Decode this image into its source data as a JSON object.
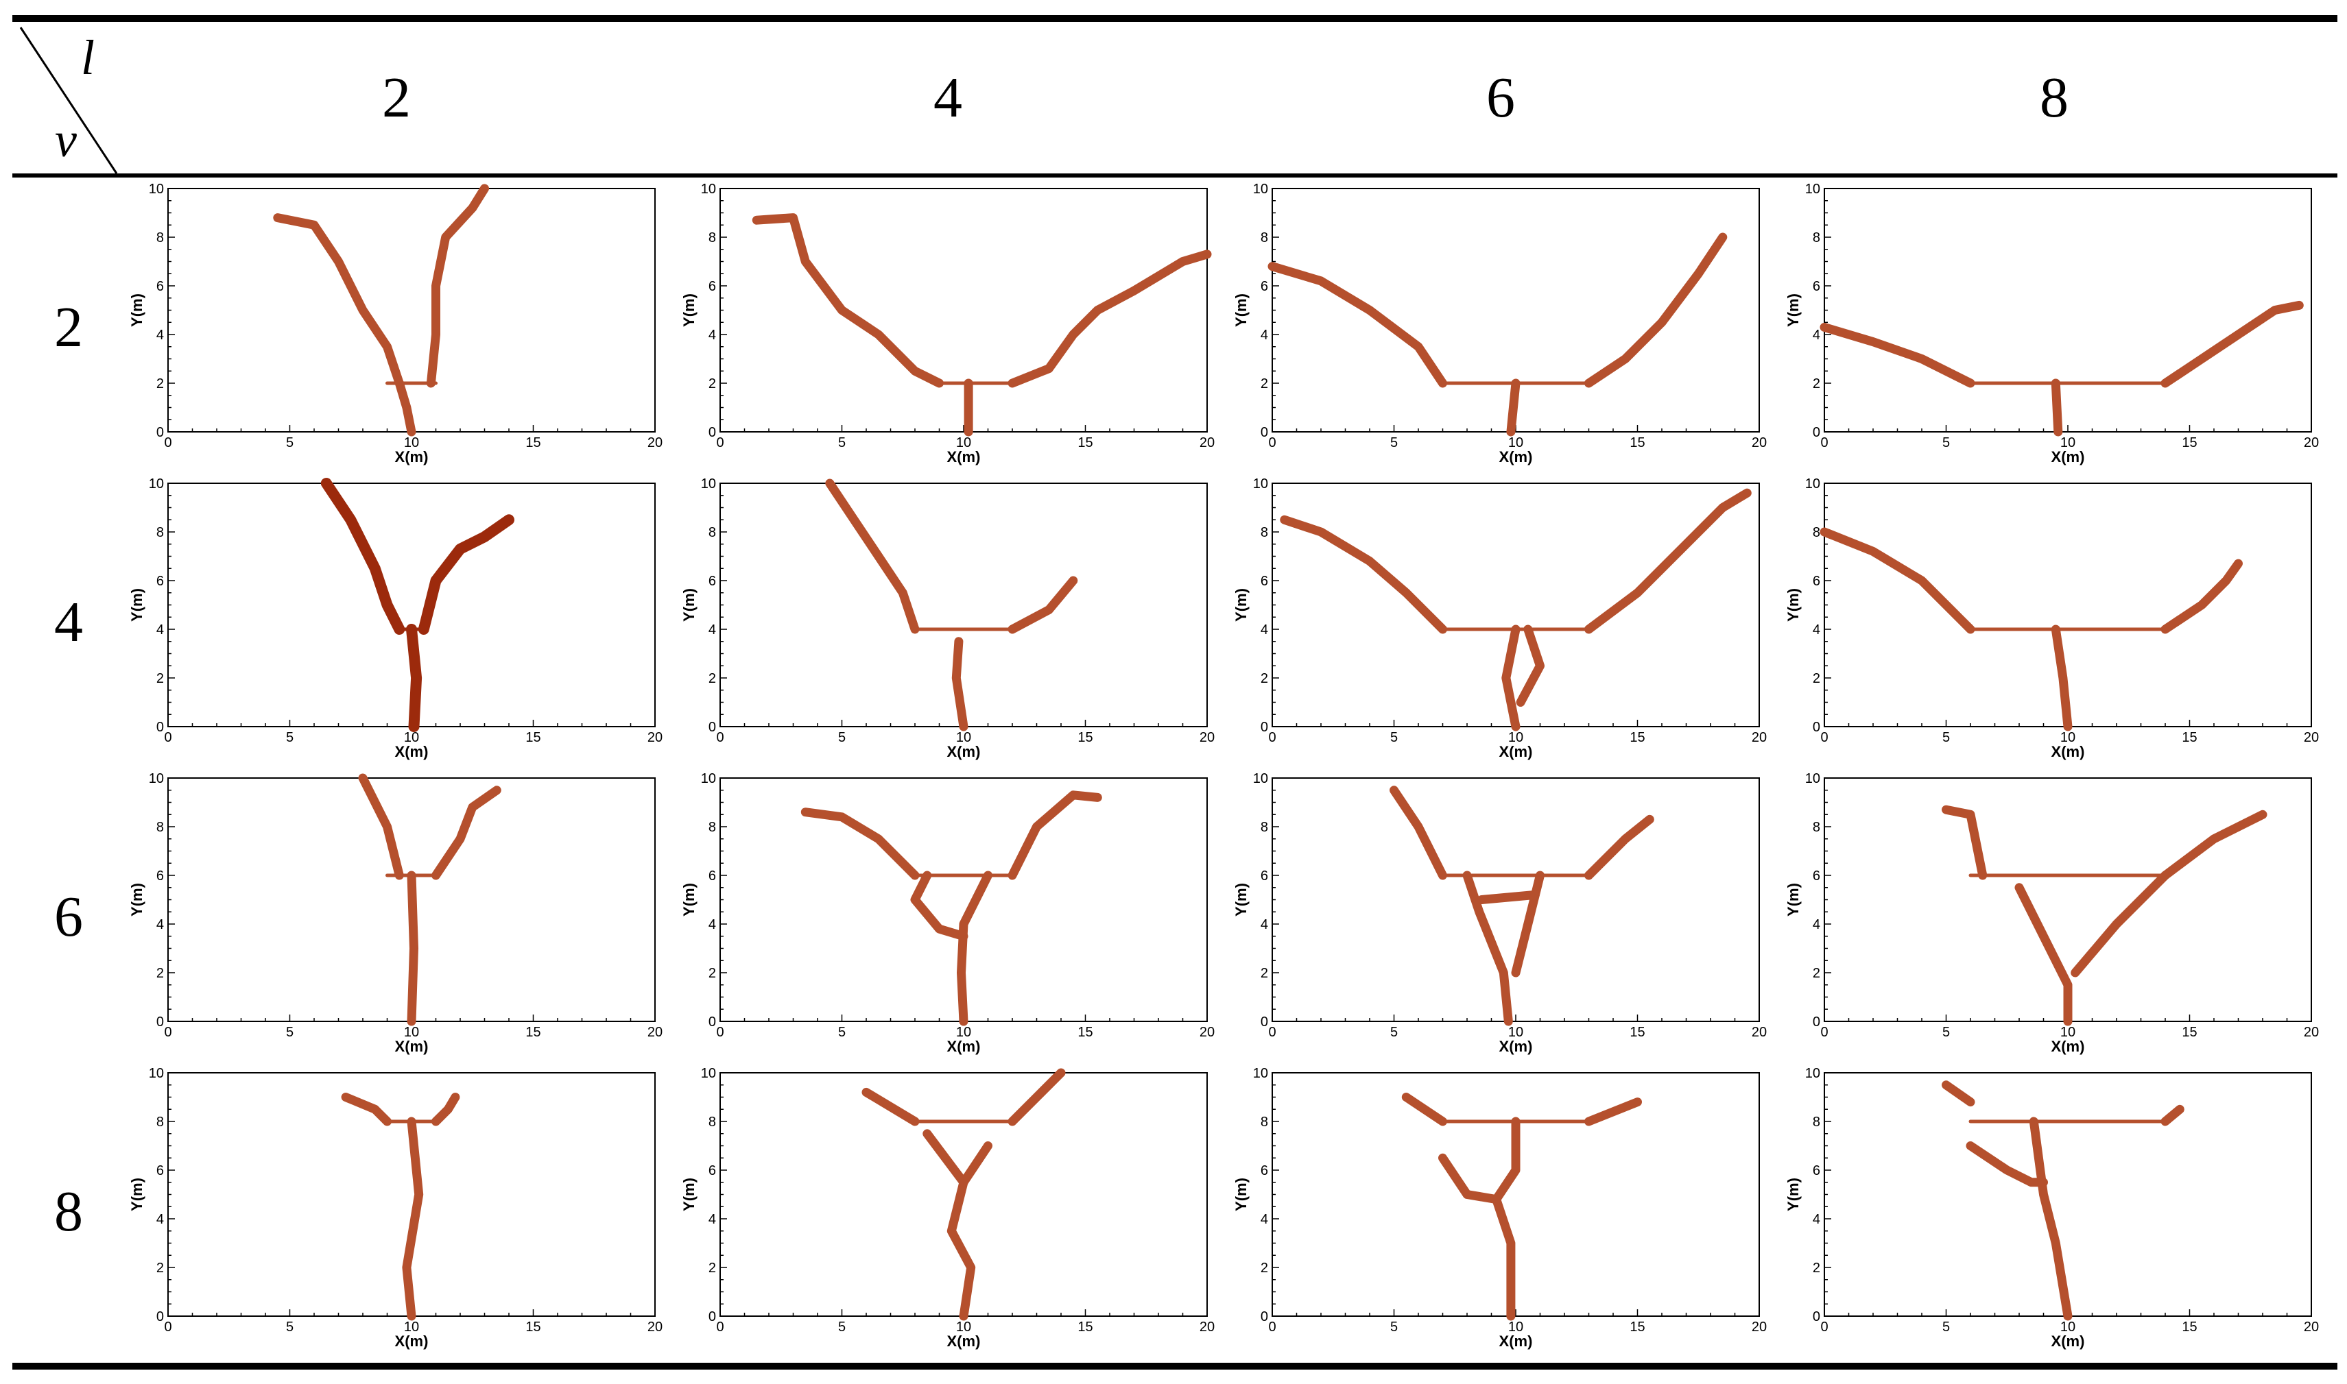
{
  "header": {
    "col_symbol": "l",
    "row_symbol": "v"
  },
  "columns": [
    "2",
    "4",
    "6",
    "8"
  ],
  "rows": [
    "2",
    "4",
    "6",
    "8"
  ],
  "axis": {
    "xlabel": "X(m)",
    "ylabel": "Y(m)",
    "xlim": [
      0,
      20
    ],
    "ylim": [
      0,
      10
    ],
    "xticks": [
      "0",
      "5",
      "10",
      "15",
      "20"
    ],
    "yticks": [
      "0",
      "2",
      "4",
      "6",
      "8",
      "10"
    ]
  },
  "colors": {
    "crack": "#b5502d",
    "crack_dark": "#9c2a0c",
    "rule": "#000000"
  },
  "chart_data": {
    "type": "scatter",
    "description_of_grid": "4x4 grid of crack-path plots; rows = v, columns = l",
    "panels": [
      {
        "v": "2",
        "l": "2",
        "cracks": [
          [
            [
              4.5,
              8.8
            ],
            [
              6,
              8.5
            ],
            [
              7,
              7
            ],
            [
              8,
              5
            ],
            [
              9,
              3.5
            ],
            [
              9.5,
              2
            ]
          ],
          [
            [
              9.5,
              2
            ],
            [
              9.8,
              1
            ],
            [
              10,
              0
            ]
          ],
          [
            [
              10.8,
              2
            ],
            [
              11,
              4
            ],
            [
              11,
              6
            ],
            [
              11.4,
              8
            ],
            [
              12.5,
              9.2
            ],
            [
              13,
              10
            ]
          ],
          [
            [
              9,
              2
            ],
            [
              11,
              2
            ]
          ]
        ]
      },
      {
        "v": "2",
        "l": "4",
        "cracks": [
          [
            [
              1.5,
              8.7
            ],
            [
              3,
              8.8
            ],
            [
              3.5,
              7
            ],
            [
              5,
              5
            ],
            [
              6.5,
              4
            ],
            [
              8,
              2.5
            ],
            [
              9,
              2
            ]
          ],
          [
            [
              9,
              2
            ],
            [
              12,
              2
            ]
          ],
          [
            [
              12,
              2
            ],
            [
              13.5,
              2.6
            ],
            [
              14.5,
              4
            ],
            [
              15.5,
              5
            ],
            [
              17,
              5.8
            ],
            [
              19,
              7
            ],
            [
              20,
              7.3
            ]
          ],
          [
            [
              10.2,
              2
            ],
            [
              10.2,
              0
            ]
          ]
        ]
      },
      {
        "v": "2",
        "l": "6",
        "cracks": [
          [
            [
              0,
              6.8
            ],
            [
              2,
              6.2
            ],
            [
              4,
              5
            ],
            [
              6,
              3.5
            ],
            [
              7,
              2
            ]
          ],
          [
            [
              7,
              2
            ],
            [
              13,
              2
            ]
          ],
          [
            [
              13,
              2
            ],
            [
              14.5,
              3
            ],
            [
              16,
              4.5
            ],
            [
              17.5,
              6.5
            ],
            [
              18.5,
              8
            ]
          ],
          [
            [
              10,
              2
            ],
            [
              9.8,
              0
            ]
          ]
        ]
      },
      {
        "v": "2",
        "l": "8",
        "cracks": [
          [
            [
              0,
              4.3
            ],
            [
              2,
              3.7
            ],
            [
              4,
              3
            ],
            [
              6,
              2
            ]
          ],
          [
            [
              6,
              2
            ],
            [
              14,
              2
            ]
          ],
          [
            [
              14,
              2
            ],
            [
              15.5,
              3
            ],
            [
              17,
              4
            ],
            [
              18.5,
              5
            ],
            [
              19.5,
              5.2
            ]
          ],
          [
            [
              9.5,
              2
            ],
            [
              9.6,
              0
            ]
          ]
        ]
      },
      {
        "v": "4",
        "l": "2",
        "cracks": [
          [
            [
              6.5,
              10
            ],
            [
              7.5,
              8.5
            ],
            [
              8.5,
              6.5
            ],
            [
              9,
              5
            ],
            [
              9.5,
              4
            ]
          ],
          [
            [
              9.5,
              4
            ],
            [
              10.5,
              4
            ]
          ],
          [
            [
              10.5,
              4
            ],
            [
              11,
              6
            ],
            [
              12,
              7.3
            ],
            [
              13,
              7.8
            ],
            [
              14,
              8.5
            ]
          ],
          [
            [
              10,
              4
            ],
            [
              10.2,
              2
            ],
            [
              10.1,
              0
            ]
          ]
        ]
      },
      {
        "v": "4",
        "l": "4",
        "cracks": [
          [
            [
              4.5,
              10
            ],
            [
              5.5,
              8.5
            ],
            [
              6.5,
              7
            ],
            [
              7.5,
              5.5
            ],
            [
              8,
              4
            ]
          ],
          [
            [
              8,
              4
            ],
            [
              12,
              4
            ]
          ],
          [
            [
              12,
              4
            ],
            [
              13.5,
              4.8
            ],
            [
              14.5,
              6
            ]
          ],
          [
            [
              9.8,
              3.5
            ],
            [
              9.7,
              2
            ],
            [
              10,
              0
            ]
          ]
        ]
      },
      {
        "v": "4",
        "l": "6",
        "cracks": [
          [
            [
              0.5,
              8.5
            ],
            [
              2,
              8
            ],
            [
              4,
              6.8
            ],
            [
              5.5,
              5.5
            ],
            [
              7,
              4
            ]
          ],
          [
            [
              7,
              4
            ],
            [
              13,
              4
            ]
          ],
          [
            [
              13,
              4
            ],
            [
              15,
              5.5
            ],
            [
              17,
              7.5
            ],
            [
              18.5,
              9
            ],
            [
              19.5,
              9.6
            ]
          ],
          [
            [
              10,
              4
            ],
            [
              9.6,
              2
            ],
            [
              10,
              0
            ]
          ],
          [
            [
              10.5,
              4
            ],
            [
              11,
              2.5
            ],
            [
              10.2,
              1
            ]
          ]
        ]
      },
      {
        "v": "4",
        "l": "8",
        "cracks": [
          [
            [
              0,
              8
            ],
            [
              2,
              7.2
            ],
            [
              4,
              6
            ],
            [
              5.5,
              4.5
            ],
            [
              6,
              4
            ]
          ],
          [
            [
              6,
              4
            ],
            [
              14,
              4
            ]
          ],
          [
            [
              14,
              4
            ],
            [
              15.5,
              5
            ],
            [
              16.5,
              6
            ],
            [
              17,
              6.7
            ]
          ],
          [
            [
              9.5,
              4
            ],
            [
              9.8,
              2
            ],
            [
              10,
              0
            ]
          ]
        ]
      },
      {
        "v": "6",
        "l": "2",
        "cracks": [
          [
            [
              8,
              10
            ],
            [
              9,
              8
            ],
            [
              9.5,
              6
            ]
          ],
          [
            [
              9,
              6
            ],
            [
              11,
              6
            ]
          ],
          [
            [
              11,
              6
            ],
            [
              12,
              7.5
            ],
            [
              12.5,
              8.8
            ],
            [
              13.5,
              9.5
            ]
          ],
          [
            [
              10,
              6
            ],
            [
              10.1,
              3
            ],
            [
              10,
              0
            ]
          ]
        ]
      },
      {
        "v": "6",
        "l": "4",
        "cracks": [
          [
            [
              3.5,
              8.6
            ],
            [
              5,
              8.4
            ],
            [
              6.5,
              7.5
            ],
            [
              8,
              6
            ]
          ],
          [
            [
              8,
              6
            ],
            [
              12,
              6
            ]
          ],
          [
            [
              12,
              6
            ],
            [
              13,
              8
            ],
            [
              14.5,
              9.3
            ],
            [
              15.5,
              9.2
            ]
          ],
          [
            [
              8.5,
              6
            ],
            [
              8,
              5
            ],
            [
              9,
              3.8
            ],
            [
              10,
              3.5
            ]
          ],
          [
            [
              11,
              6
            ],
            [
              10,
              4
            ],
            [
              9.9,
              2
            ],
            [
              10,
              0
            ]
          ]
        ]
      },
      {
        "v": "6",
        "l": "6",
        "cracks": [
          [
            [
              5,
              9.5
            ],
            [
              6,
              8
            ],
            [
              7,
              6
            ]
          ],
          [
            [
              7,
              6
            ],
            [
              13,
              6
            ]
          ],
          [
            [
              13,
              6
            ],
            [
              14.5,
              7.5
            ],
            [
              15.5,
              8.3
            ]
          ],
          [
            [
              8,
              6
            ],
            [
              8.5,
              4.5
            ],
            [
              9.5,
              2
            ],
            [
              9.7,
              0
            ]
          ],
          [
            [
              11,
              6
            ],
            [
              10.5,
              4
            ],
            [
              10,
              2
            ]
          ],
          [
            [
              8.6,
              5
            ],
            [
              10.8,
              5.2
            ]
          ]
        ]
      },
      {
        "v": "6",
        "l": "8",
        "cracks": [
          [
            [
              5,
              8.7
            ],
            [
              6,
              8.5
            ],
            [
              6.5,
              6
            ]
          ],
          [
            [
              6,
              6
            ],
            [
              14,
              6
            ]
          ],
          [
            [
              14,
              6
            ],
            [
              16,
              7.5
            ],
            [
              18,
              8.5
            ]
          ],
          [
            [
              8,
              5.5
            ],
            [
              9,
              3.5
            ],
            [
              10,
              1.5
            ],
            [
              10,
              0
            ]
          ],
          [
            [
              14,
              6
            ],
            [
              12,
              4
            ],
            [
              10.3,
              2
            ]
          ]
        ]
      },
      {
        "v": "8",
        "l": "2",
        "cracks": [
          [
            [
              7.3,
              9
            ],
            [
              8.5,
              8.5
            ],
            [
              9,
              8
            ]
          ],
          [
            [
              9,
              8
            ],
            [
              11,
              8
            ]
          ],
          [
            [
              11,
              8
            ],
            [
              11.5,
              8.5
            ],
            [
              11.8,
              9
            ]
          ],
          [
            [
              10,
              8
            ],
            [
              10.3,
              5
            ],
            [
              9.8,
              2
            ],
            [
              10,
              0
            ]
          ]
        ]
      },
      {
        "v": "8",
        "l": "4",
        "cracks": [
          [
            [
              6,
              9.2
            ],
            [
              7,
              8.6
            ],
            [
              8,
              8
            ]
          ],
          [
            [
              8,
              8
            ],
            [
              12,
              8
            ]
          ],
          [
            [
              12,
              8
            ],
            [
              13,
              9
            ],
            [
              14,
              10
            ]
          ],
          [
            [
              8.5,
              7.5
            ],
            [
              10,
              5.5
            ]
          ],
          [
            [
              11,
              7
            ],
            [
              10,
              5.5
            ],
            [
              9.5,
              3.5
            ],
            [
              10.3,
              2
            ],
            [
              10,
              0
            ]
          ]
        ]
      },
      {
        "v": "8",
        "l": "6",
        "cracks": [
          [
            [
              5.5,
              9
            ],
            [
              7,
              8
            ]
          ],
          [
            [
              7,
              8
            ],
            [
              13,
              8
            ]
          ],
          [
            [
              13,
              8
            ],
            [
              15,
              8.8
            ]
          ],
          [
            [
              7,
              6.5
            ],
            [
              8,
              5
            ],
            [
              9.2,
              4.8
            ],
            [
              10,
              6
            ],
            [
              10,
              8
            ]
          ],
          [
            [
              9.2,
              4.8
            ],
            [
              9.8,
              3
            ],
            [
              9.8,
              0
            ]
          ]
        ]
      },
      {
        "v": "8",
        "l": "8",
        "cracks": [
          [
            [
              5,
              9.5
            ],
            [
              6,
              8.8
            ]
          ],
          [
            [
              6,
              8
            ],
            [
              14,
              8
            ]
          ],
          [
            [
              14,
              8
            ],
            [
              14.6,
              8.5
            ]
          ],
          [
            [
              6,
              7
            ],
            [
              7.5,
              6
            ],
            [
              8.5,
              5.5
            ],
            [
              9,
              5.5
            ]
          ],
          [
            [
              8.6,
              8
            ],
            [
              9,
              5
            ],
            [
              9.5,
              3
            ],
            [
              10,
              0
            ]
          ]
        ]
      }
    ]
  }
}
